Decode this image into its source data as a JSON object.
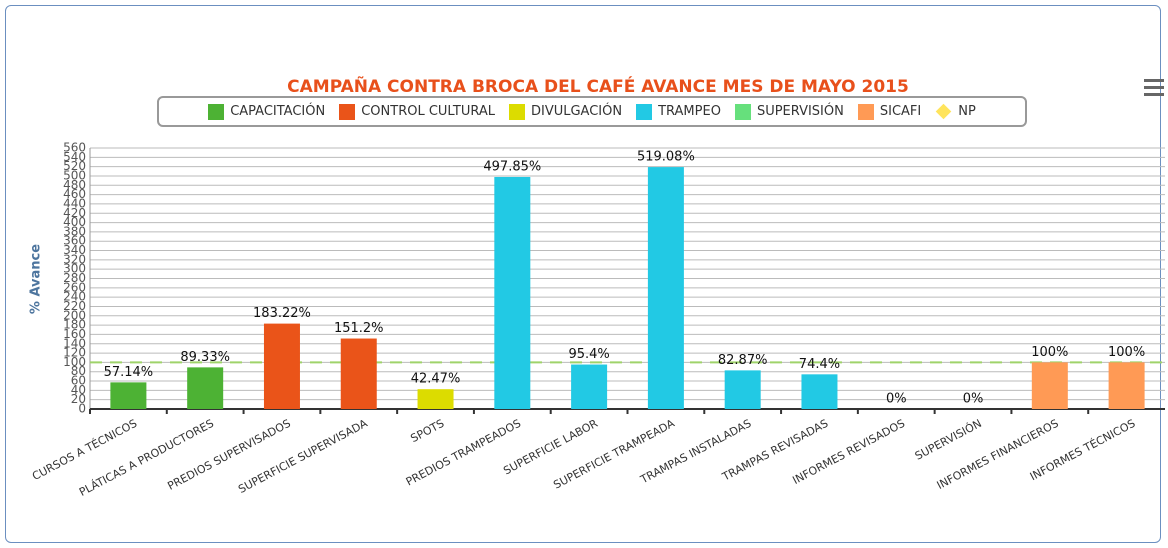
{
  "chart_data": {
    "type": "bar",
    "title": "CAMPAÑA CONTRA BROCA DEL CAFÉ AVANCE MES DE MAYO 2015",
    "y_label": "% Avance",
    "categories": [
      "CURSOS A TÉCNICOS",
      "PLÁTICAS A PRODUCTORES",
      "PREDIOS SUPERVISADOS",
      "SUPERFICIE SUPERVISADA",
      "SPOTS",
      "PREDIOS TRAMPEADOS",
      "SUPERFICIE LABOR",
      "SUPERFICIE TRAMPEADA",
      "TRAMPAS INSTALADAS",
      "TRAMPAS REVISADAS",
      "INFORMES REVISADOS",
      "SUPERVISIÓN",
      "INFORMES FINANCIEROS",
      "INFORMES TÉCNICOS"
    ],
    "series": [
      {
        "name": "CAPACITACIÓN",
        "color": "#4db234",
        "symbol": "square",
        "values": [
          57.14,
          89.33,
          null,
          null,
          null,
          null,
          null,
          null,
          null,
          null,
          null,
          null,
          null,
          null
        ],
        "value_labels": [
          "57.14%",
          "89.33%",
          null,
          null,
          null,
          null,
          null,
          null,
          null,
          null,
          null,
          null,
          null,
          null
        ]
      },
      {
        "name": "CONTROL CULTURAL",
        "color": "#ea5419",
        "symbol": "square",
        "values": [
          null,
          null,
          183.22,
          151.2,
          null,
          null,
          null,
          null,
          null,
          null,
          null,
          null,
          null,
          null
        ],
        "value_labels": [
          null,
          null,
          "183.22%",
          "151.2%",
          null,
          null,
          null,
          null,
          null,
          null,
          null,
          null,
          null,
          null
        ]
      },
      {
        "name": "DIVULGACIÓN",
        "color": "#dcdc00",
        "symbol": "square",
        "values": [
          null,
          null,
          null,
          null,
          42.47,
          null,
          null,
          null,
          null,
          null,
          null,
          null,
          null,
          null
        ],
        "value_labels": [
          null,
          null,
          null,
          null,
          "42.47%",
          null,
          null,
          null,
          null,
          null,
          null,
          null,
          null,
          null
        ]
      },
      {
        "name": "TRAMPEO",
        "color": "#22c9e4",
        "symbol": "square",
        "values": [
          null,
          null,
          null,
          null,
          null,
          497.85,
          95.4,
          519.08,
          82.87,
          74.4,
          null,
          null,
          null,
          null
        ],
        "value_labels": [
          null,
          null,
          null,
          null,
          null,
          "497.85%",
          "95.4%",
          "519.08%",
          "82.87%",
          "74.4%",
          null,
          null,
          null,
          null
        ]
      },
      {
        "name": "SUPERVISIÓN",
        "color": "#66e07c",
        "symbol": "square",
        "values": [
          null,
          null,
          null,
          null,
          null,
          null,
          null,
          null,
          null,
          null,
          0,
          0,
          null,
          null
        ],
        "value_labels": [
          null,
          null,
          null,
          null,
          null,
          null,
          null,
          null,
          null,
          null,
          "0%",
          "0%",
          null,
          null
        ]
      },
      {
        "name": "SICAFI",
        "color": "#ff9a55",
        "symbol": "square",
        "values": [
          null,
          null,
          null,
          null,
          null,
          null,
          null,
          null,
          null,
          null,
          null,
          null,
          100,
          100
        ],
        "value_labels": [
          null,
          null,
          null,
          null,
          null,
          null,
          null,
          null,
          null,
          null,
          null,
          null,
          "100%",
          "100%"
        ]
      },
      {
        "name": "NP",
        "color": "#ffe45c",
        "symbol": "diamond",
        "values": [
          null,
          null,
          null,
          null,
          null,
          null,
          null,
          null,
          null,
          null,
          null,
          null,
          null,
          null
        ]
      }
    ],
    "plot_line": {
      "value": 100,
      "color": "#9fd36a"
    },
    "ylim": [
      0,
      560
    ],
    "yticks": [
      0,
      20,
      40,
      60,
      80,
      100,
      120,
      140,
      160,
      180,
      200,
      220,
      240,
      260,
      280,
      300,
      320,
      340,
      360,
      380,
      400,
      420,
      440,
      460,
      480,
      500,
      520,
      540,
      560
    ],
    "grid": true
  }
}
